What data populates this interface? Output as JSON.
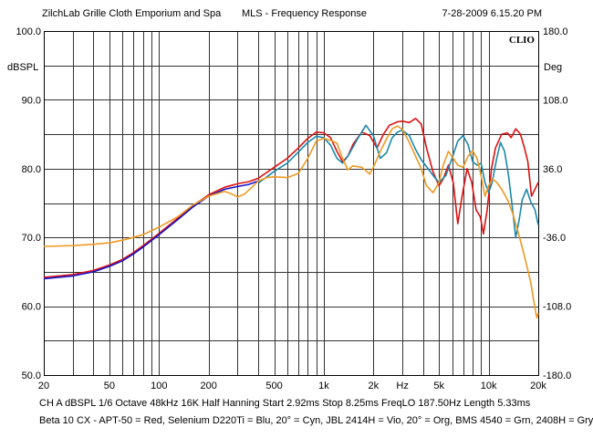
{
  "header": {
    "left": "ZilchLab Grille Cloth Emporium and Spa",
    "center": "MLS - Frequency Response",
    "right": "7-28-2009 6.15.20 PM"
  },
  "logo": "CLIO",
  "footer": {
    "settings": "CH A    dBSPL    1/6 Octave    48kHz    16K    Half Hanning    Start 2.92ms       Stop 8.25ms       FreqLO 187.50Hz     Length 5.33ms",
    "legend": "Beta 10 CX - APT-50 = Red, Selenium D220Ti = Blu, 20° = Cyn, JBL 2414H = Vio, 20° = Org, BMS 4540 = Grn, 2408H = Gry"
  },
  "chart_data": {
    "type": "line",
    "title": "MLS - Frequency Response",
    "xlabel": "Hz",
    "ylabel": "dBSPL",
    "y2label": "Deg",
    "xscale": "log",
    "xlim": [
      20,
      20000
    ],
    "ylim": [
      50,
      100
    ],
    "y2lim": [
      -180,
      180
    ],
    "grid": true,
    "xticks": [
      {
        "value": 20,
        "label": "20"
      },
      {
        "value": 50,
        "label": "50"
      },
      {
        "value": 100,
        "label": "100"
      },
      {
        "value": 200,
        "label": "200"
      },
      {
        "value": 500,
        "label": "500"
      },
      {
        "value": 1000,
        "label": "1k"
      },
      {
        "value": 2000,
        "label": "2k"
      },
      {
        "value": 3000,
        "label": "Hz"
      },
      {
        "value": 5000,
        "label": "5k"
      },
      {
        "value": 10000,
        "label": "10k"
      },
      {
        "value": 20000,
        "label": "20k"
      }
    ],
    "yticks": [
      {
        "value": 100,
        "label": "100.0"
      },
      {
        "value": 90,
        "label": "90.0"
      },
      {
        "value": 80,
        "label": "80.0"
      },
      {
        "value": 70,
        "label": "70.0"
      },
      {
        "value": 60,
        "label": "60.0"
      },
      {
        "value": 50,
        "label": "50.0"
      }
    ],
    "y2ticks": [
      {
        "value": 180,
        "label": "180.0"
      },
      {
        "value": 108,
        "label": "108.0"
      },
      {
        "value": 36,
        "label": "36.0"
      },
      {
        "value": -36,
        "label": "-36.0"
      },
      {
        "value": -108,
        "label": "-108.0"
      },
      {
        "value": -180,
        "label": "-180.0"
      }
    ],
    "series": [
      {
        "color": "#dd1111",
        "points": [
          [
            20,
            64.2
          ],
          [
            30,
            64.6
          ],
          [
            40,
            65.2
          ],
          [
            50,
            66
          ],
          [
            60,
            66.8
          ],
          [
            70,
            67.8
          ],
          [
            80,
            68.8
          ],
          [
            100,
            70.6
          ],
          [
            130,
            72.8
          ],
          [
            160,
            74.6
          ],
          [
            200,
            76.2
          ],
          [
            250,
            77.3
          ],
          [
            300,
            77.8
          ],
          [
            350,
            78.1
          ],
          [
            400,
            78.6
          ],
          [
            500,
            80.2
          ],
          [
            600,
            81.5
          ],
          [
            700,
            83
          ],
          [
            800,
            84.4
          ],
          [
            900,
            85.3
          ],
          [
            1000,
            85.2
          ],
          [
            1100,
            84.5
          ],
          [
            1200,
            82.5
          ],
          [
            1300,
            81
          ],
          [
            1400,
            81.8
          ],
          [
            1500,
            83.5
          ],
          [
            1700,
            85.3
          ],
          [
            1900,
            84.8
          ],
          [
            2100,
            83
          ],
          [
            2300,
            85
          ],
          [
            2500,
            86.3
          ],
          [
            2800,
            86.8
          ],
          [
            3000,
            86.9
          ],
          [
            3300,
            86.7
          ],
          [
            3600,
            87.3
          ],
          [
            3900,
            86.5
          ],
          [
            4200,
            83
          ],
          [
            4600,
            79.5
          ],
          [
            5000,
            77.5
          ],
          [
            5300,
            78.5
          ],
          [
            5700,
            80.5
          ],
          [
            6100,
            78
          ],
          [
            6500,
            72
          ],
          [
            6900,
            76
          ],
          [
            7400,
            80
          ],
          [
            7900,
            78
          ],
          [
            8400,
            74
          ],
          [
            8900,
            73
          ],
          [
            9300,
            70.5
          ],
          [
            9800,
            74
          ],
          [
            10400,
            80
          ],
          [
            11000,
            83
          ],
          [
            12000,
            85
          ],
          [
            13000,
            85.2
          ],
          [
            13700,
            84.5
          ],
          [
            14600,
            85.8
          ],
          [
            15600,
            85
          ],
          [
            16500,
            83
          ],
          [
            17300,
            81
          ],
          [
            18200,
            76
          ],
          [
            19100,
            77
          ],
          [
            20000,
            78
          ]
        ]
      },
      {
        "color": "#1111cc",
        "points": [
          [
            20,
            64
          ],
          [
            30,
            64.4
          ],
          [
            40,
            65
          ],
          [
            50,
            65.8
          ],
          [
            60,
            66.6
          ],
          [
            70,
            67.6
          ],
          [
            80,
            68.6
          ],
          [
            100,
            70.4
          ],
          [
            130,
            72.6
          ],
          [
            160,
            74.4
          ],
          [
            200,
            76
          ],
          [
            250,
            77
          ],
          [
            300,
            77.4
          ],
          [
            350,
            77.7
          ],
          [
            400,
            78.2
          ]
        ]
      },
      {
        "color": "#1a88aa",
        "points": [
          [
            400,
            77.9
          ],
          [
            500,
            79.6
          ],
          [
            600,
            80.8
          ],
          [
            700,
            82.4
          ],
          [
            800,
            83.8
          ],
          [
            900,
            84.7
          ],
          [
            1000,
            84.5
          ],
          [
            1100,
            83.4
          ],
          [
            1200,
            81.5
          ],
          [
            1300,
            80.8
          ],
          [
            1400,
            81.8
          ],
          [
            1600,
            84.3
          ],
          [
            1800,
            86.3
          ],
          [
            2000,
            84.8
          ],
          [
            2200,
            81.5
          ],
          [
            2400,
            82.3
          ],
          [
            2600,
            84.5
          ],
          [
            2800,
            85.3
          ],
          [
            3000,
            85.6
          ],
          [
            3300,
            84.8
          ],
          [
            3600,
            82.8
          ],
          [
            3900,
            81.3
          ],
          [
            4200,
            80.3
          ],
          [
            4600,
            79
          ],
          [
            5000,
            78
          ],
          [
            5500,
            79
          ],
          [
            6000,
            81.5
          ],
          [
            6500,
            84
          ],
          [
            7000,
            84.8
          ],
          [
            7500,
            83.5
          ],
          [
            8000,
            81
          ],
          [
            8500,
            80.5
          ],
          [
            9000,
            80.8
          ],
          [
            9500,
            78
          ],
          [
            10000,
            76.5
          ],
          [
            10500,
            78
          ],
          [
            11200,
            81.5
          ],
          [
            11800,
            83.8
          ],
          [
            12500,
            82.5
          ],
          [
            13200,
            79
          ],
          [
            13900,
            74.5
          ],
          [
            14600,
            70
          ],
          [
            15300,
            72.5
          ],
          [
            16000,
            75.5
          ],
          [
            17000,
            77
          ],
          [
            18000,
            75.2
          ],
          [
            19100,
            74
          ],
          [
            20000,
            71.8
          ]
        ]
      },
      {
        "color": "#ee9922",
        "points": [
          [
            20,
            68.7
          ],
          [
            30,
            68.8
          ],
          [
            40,
            69
          ],
          [
            50,
            69.2
          ],
          [
            60,
            69.6
          ],
          [
            70,
            70
          ],
          [
            80,
            70.4
          ],
          [
            100,
            71.5
          ],
          [
            130,
            73
          ],
          [
            160,
            74.7
          ],
          [
            200,
            76
          ],
          [
            250,
            76.7
          ],
          [
            270,
            76.4
          ],
          [
            300,
            75.9
          ],
          [
            330,
            76.3
          ],
          [
            370,
            77.4
          ],
          [
            400,
            78.2
          ],
          [
            450,
            78.7
          ],
          [
            500,
            78.8
          ],
          [
            600,
            78.7
          ],
          [
            700,
            79.3
          ],
          [
            800,
            81.5
          ],
          [
            900,
            84
          ],
          [
            1000,
            84.4
          ],
          [
            1100,
            84.1
          ],
          [
            1200,
            83.7
          ],
          [
            1300,
            81.5
          ],
          [
            1400,
            79.8
          ],
          [
            1500,
            80.4
          ],
          [
            1700,
            80.2
          ],
          [
            1900,
            79.2
          ],
          [
            2000,
            80.2
          ],
          [
            2200,
            82.5
          ],
          [
            2400,
            84.3
          ],
          [
            2600,
            85.8
          ],
          [
            2800,
            86.2
          ],
          [
            3000,
            85.7
          ],
          [
            3300,
            83.8
          ],
          [
            3600,
            81.8
          ],
          [
            3900,
            80
          ],
          [
            4200,
            77.5
          ],
          [
            4600,
            76.5
          ],
          [
            5000,
            78
          ],
          [
            5300,
            80.5
          ],
          [
            5700,
            82.5
          ],
          [
            6100,
            81.5
          ],
          [
            6500,
            80.5
          ],
          [
            7000,
            80.2
          ],
          [
            7500,
            81.8
          ],
          [
            8000,
            82.6
          ],
          [
            8500,
            81.5
          ],
          [
            9000,
            79
          ],
          [
            9500,
            76
          ],
          [
            10000,
            77.5
          ],
          [
            10500,
            78.5
          ],
          [
            11200,
            78
          ],
          [
            12000,
            77
          ],
          [
            13000,
            75.5
          ],
          [
            14000,
            73.5
          ],
          [
            15000,
            71
          ],
          [
            16000,
            68.5
          ],
          [
            17000,
            66
          ],
          [
            18000,
            63.5
          ],
          [
            19000,
            60
          ],
          [
            19600,
            58.3
          ],
          [
            20000,
            59
          ]
        ]
      }
    ]
  }
}
